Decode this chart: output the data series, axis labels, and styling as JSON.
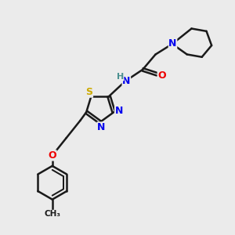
{
  "bg_color": "#ebebeb",
  "bond_color": "#1a1a1a",
  "bond_width": 1.8,
  "dbo": 0.07,
  "atom_colors": {
    "N": "#0000ee",
    "O": "#ee0000",
    "S": "#ccaa00",
    "H": "#4a9090",
    "C": "#1a1a1a"
  },
  "font_size": 9,
  "fig_size": [
    3.0,
    3.0
  ],
  "dpi": 100
}
